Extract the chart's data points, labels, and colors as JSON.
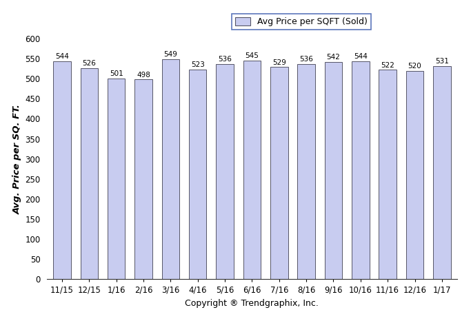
{
  "categories": [
    "11/15",
    "12/15",
    "1/16",
    "2/16",
    "3/16",
    "4/16",
    "5/16",
    "6/16",
    "7/16",
    "8/16",
    "9/16",
    "10/16",
    "11/16",
    "12/16",
    "1/17"
  ],
  "values": [
    544,
    526,
    501,
    498,
    549,
    523,
    536,
    545,
    529,
    536,
    542,
    544,
    522,
    520,
    531
  ],
  "bar_color": "#c8ccf0",
  "bar_edgecolor": "#555566",
  "ylim": [
    0,
    600
  ],
  "yticks": [
    0,
    50,
    100,
    150,
    200,
    250,
    300,
    350,
    400,
    450,
    500,
    550,
    600
  ],
  "ylabel": "Avg. Price per SQ. FT.",
  "xlabel": "Copyright ® Trendgraphix, Inc.",
  "legend_label": "Avg Price per SQFT (Sold)",
  "legend_border_color": "#3355aa",
  "label_fontsize": 9,
  "tick_fontsize": 8.5,
  "ylabel_fontsize": 9.5,
  "xlabel_fontsize": 9,
  "value_fontsize": 7.5,
  "background_color": "#ffffff"
}
